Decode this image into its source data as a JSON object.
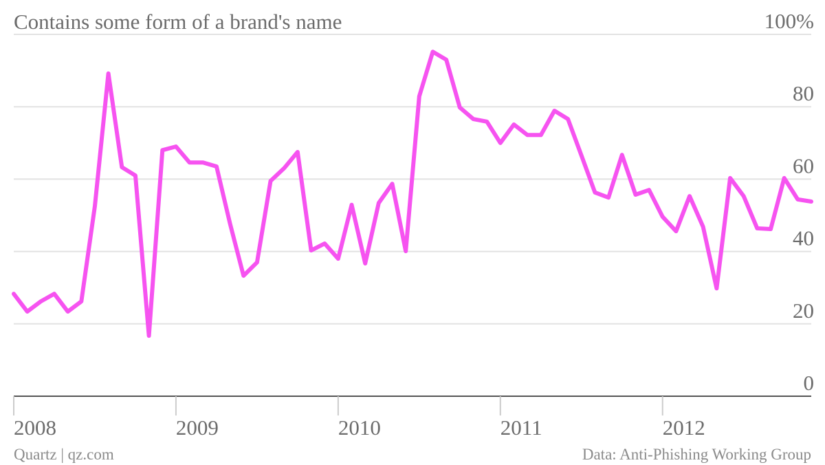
{
  "chart_data": {
    "type": "line",
    "title": "Contains some form of a brand's name",
    "source": "Data: Anti-Phishing Working Group",
    "credit": "Quartz | qz.com",
    "categories": [
      "2008",
      null,
      null,
      null,
      null,
      null,
      null,
      null,
      null,
      null,
      null,
      null,
      "2009",
      null,
      null,
      null,
      null,
      null,
      null,
      null,
      null,
      null,
      null,
      null,
      "2010",
      null,
      null,
      null,
      null,
      null,
      null,
      null,
      null,
      null,
      null,
      null,
      "2011",
      null,
      null,
      null,
      null,
      null,
      null,
      null,
      null,
      null,
      null,
      null,
      "2012",
      null,
      null,
      null,
      null,
      null,
      null,
      null,
      null,
      null,
      null,
      null
    ],
    "series": [
      {
        "name": "Contains some form of a brand's name",
        "color": "#f653f0",
        "values": [
          28.3,
          23.4,
          26.2,
          28.3,
          23.4,
          26.2,
          52.5,
          89.2,
          63.3,
          61.0,
          16.7,
          68.0,
          69.0,
          64.6,
          64.6,
          63.5,
          47.7,
          33.3,
          37.0,
          59.5,
          63.0,
          67.5,
          40.3,
          42.2,
          38.0,
          52.9,
          36.7,
          53.4,
          58.7,
          40.1,
          82.9,
          95.2,
          93.0,
          79.8,
          76.6,
          75.9,
          70.0,
          75.1,
          72.2,
          72.2,
          78.9,
          76.6,
          66.5,
          56.3,
          54.9,
          66.7,
          55.7,
          57.0,
          49.6,
          45.6,
          55.3,
          46.8,
          29.8,
          60.3,
          55.3,
          46.4,
          46.2,
          60.3,
          54.4,
          53.8
        ]
      }
    ],
    "ylim": [
      0,
      100
    ],
    "yticks": [
      0,
      20,
      40,
      60,
      80,
      {
        "value": 100,
        "label": "100%"
      }
    ],
    "grid": true
  }
}
